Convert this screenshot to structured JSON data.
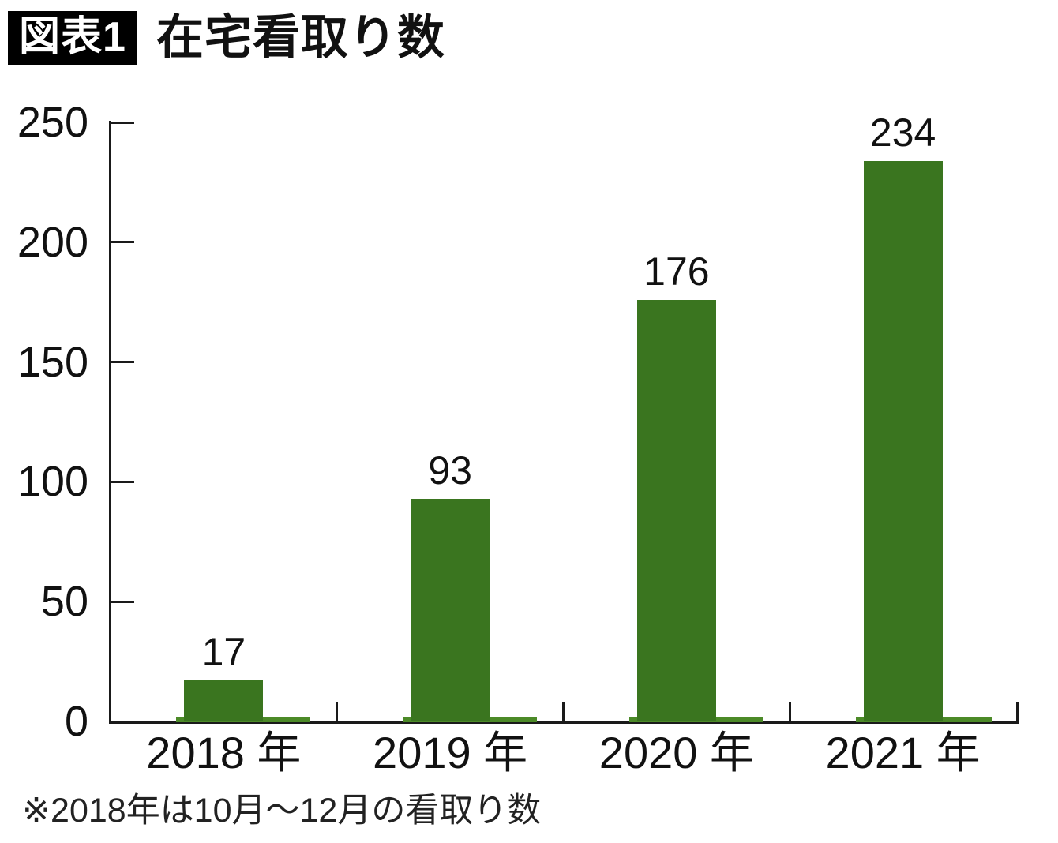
{
  "header": {
    "badge": "図表1",
    "title": "在宅看取り数"
  },
  "footnote": "※2018年は10月～12月の看取り数",
  "colors": {
    "bar": "#3a751f",
    "baseline_strip": "#4c8a28",
    "axis": "#1a1a1a",
    "badge_bg": "#000000",
    "badge_text": "#ffffff",
    "text": "#111111",
    "background": "#ffffff"
  },
  "chart_data": {
    "type": "bar",
    "title": "在宅看取り数",
    "categories": [
      "2018 年",
      "2019 年",
      "2020 年",
      "2021 年"
    ],
    "values": [
      17,
      93,
      176,
      234
    ],
    "data_labels": [
      "17",
      "93",
      "176",
      "234"
    ],
    "xlabel": "",
    "ylabel": "",
    "ylim": [
      0,
      250
    ],
    "yticks": [
      0,
      50,
      100,
      150,
      200,
      250
    ],
    "grid": false,
    "legend": "none",
    "bar_color": "#3a751f",
    "note": "※2018年は10月～12月の看取り数"
  }
}
